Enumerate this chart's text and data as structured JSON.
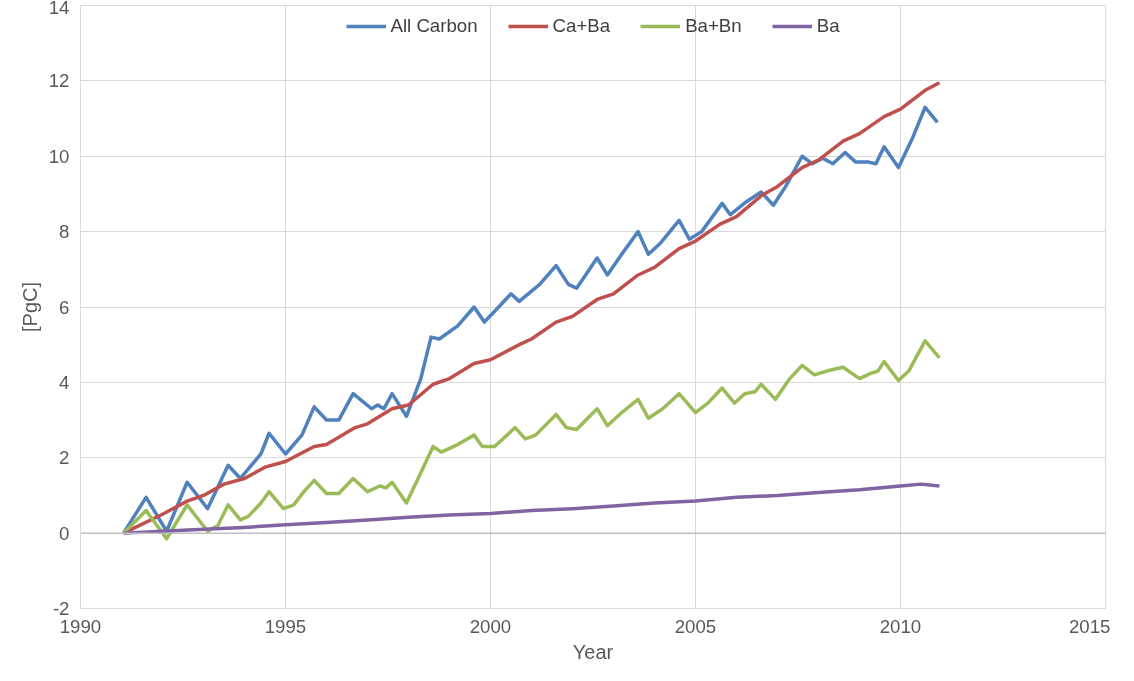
{
  "chart_data": {
    "type": "line",
    "xlabel": "Year",
    "ylabel": "[PgC]",
    "xlim": [
      1990,
      2015
    ],
    "xticks": [
      1990,
      1995,
      2000,
      2005,
      2010,
      2015
    ],
    "ylim": [
      -2,
      14
    ],
    "yticks": [
      -2,
      0,
      2,
      4,
      6,
      8,
      10,
      12,
      14
    ],
    "grid": true,
    "legend": "top",
    "marker": "none",
    "line_style": "solid",
    "series": [
      {
        "name": "All Carbon",
        "color": "#4f81bd",
        "x": [
          1991.05,
          1991.6,
          1992.1,
          1992.6,
          1993.1,
          1993.6,
          1993.9,
          1994.4,
          1994.6,
          1995.0,
          1995.4,
          1995.7,
          1996.0,
          1996.3,
          1996.65,
          1997.1,
          1997.25,
          1997.4,
          1997.6,
          1997.95,
          1998.3,
          1998.55,
          1998.75,
          1999.2,
          1999.6,
          1999.85,
          2000.2,
          2000.5,
          2000.7,
          2001.2,
          2001.6,
          2001.9,
          2002.1,
          2002.6,
          2002.85,
          2003.2,
          2003.6,
          2003.85,
          2004.15,
          2004.6,
          2004.85,
          2005.15,
          2005.65,
          2005.85,
          2006.25,
          2006.6,
          2006.9,
          2007.2,
          2007.6,
          2007.85,
          2008.1,
          2008.35,
          2008.65,
          2008.9,
          2009.2,
          2009.4,
          2009.6,
          2009.95,
          2010.3,
          2010.6,
          2010.9
        ],
        "values": [
          0,
          0.95,
          0.05,
          1.35,
          0.65,
          1.8,
          1.45,
          2.1,
          2.65,
          2.1,
          2.6,
          3.35,
          3.0,
          3.0,
          3.7,
          3.3,
          3.4,
          3.3,
          3.7,
          3.1,
          4.1,
          5.2,
          5.15,
          5.5,
          6.0,
          5.6,
          6.0,
          6.35,
          6.15,
          6.6,
          7.1,
          6.6,
          6.5,
          7.3,
          6.85,
          7.4,
          8.0,
          7.4,
          7.7,
          8.3,
          7.8,
          8.0,
          8.75,
          8.45,
          8.8,
          9.05,
          8.7,
          9.2,
          10.0,
          9.8,
          9.95,
          9.8,
          10.1,
          9.85,
          9.85,
          9.8,
          10.25,
          9.7,
          10.5,
          11.3,
          10.9
        ]
      },
      {
        "name": "Ca+Ba",
        "color": "#c0504d",
        "x": [
          1991.05,
          1992,
          1992.6,
          1993,
          1993.5,
          1994,
          1994.5,
          1995,
          1995.7,
          1996,
          1996.7,
          1997,
          1997.6,
          1998,
          1998.6,
          1999,
          1999.6,
          2000,
          2000.7,
          2001,
          2001.6,
          2002,
          2002.6,
          2003,
          2003.6,
          2004,
          2004.6,
          2005,
          2005.6,
          2006,
          2006.6,
          2007,
          2007.6,
          2008,
          2008.6,
          2009,
          2009.6,
          2010,
          2010.6,
          2010.95
        ],
        "values": [
          0,
          0.5,
          0.85,
          1.0,
          1.3,
          1.45,
          1.75,
          1.9,
          2.3,
          2.35,
          2.8,
          2.9,
          3.3,
          3.4,
          3.95,
          4.1,
          4.5,
          4.6,
          5.0,
          5.15,
          5.6,
          5.75,
          6.2,
          6.35,
          6.85,
          7.05,
          7.55,
          7.75,
          8.2,
          8.4,
          8.95,
          9.2,
          9.7,
          9.9,
          10.4,
          10.6,
          11.05,
          11.25,
          11.75,
          11.95
        ]
      },
      {
        "name": "Ba+Bn",
        "color": "#9bbb59",
        "x": [
          1991.05,
          1991.6,
          1992.1,
          1992.6,
          1993.1,
          1993.35,
          1993.6,
          1993.9,
          1994.1,
          1994.4,
          1994.6,
          1994.95,
          1995.2,
          1995.45,
          1995.7,
          1996.0,
          1996.3,
          1996.65,
          1997.0,
          1997.3,
          1997.45,
          1997.6,
          1997.95,
          1998.3,
          1998.6,
          1998.8,
          1999.2,
          1999.6,
          1999.8,
          2000.1,
          2000.6,
          2000.85,
          2001.1,
          2001.6,
          2001.85,
          2002.1,
          2002.6,
          2002.85,
          2003.2,
          2003.6,
          2003.85,
          2004.2,
          2004.6,
          2005.0,
          2005.3,
          2005.65,
          2005.95,
          2006.2,
          2006.45,
          2006.6,
          2006.95,
          2007.3,
          2007.6,
          2007.9,
          2008.2,
          2008.6,
          2009.0,
          2009.3,
          2009.45,
          2009.6,
          2009.95,
          2010.2,
          2010.6,
          2010.95
        ],
        "values": [
          0,
          0.6,
          -0.15,
          0.75,
          0.05,
          0.2,
          0.75,
          0.35,
          0.45,
          0.8,
          1.1,
          0.65,
          0.75,
          1.1,
          1.4,
          1.05,
          1.05,
          1.45,
          1.1,
          1.25,
          1.2,
          1.35,
          0.8,
          1.6,
          2.3,
          2.15,
          2.35,
          2.6,
          2.3,
          2.3,
          2.8,
          2.5,
          2.6,
          3.15,
          2.8,
          2.75,
          3.3,
          2.85,
          3.2,
          3.55,
          3.05,
          3.3,
          3.7,
          3.2,
          3.45,
          3.85,
          3.45,
          3.7,
          3.75,
          3.95,
          3.55,
          4.1,
          4.45,
          4.2,
          4.3,
          4.4,
          4.1,
          4.25,
          4.3,
          4.55,
          4.05,
          4.3,
          5.1,
          4.65
        ]
      },
      {
        "name": "Ba",
        "color": "#8064a2",
        "x": [
          1991.05,
          1992,
          1993,
          1994,
          1995,
          1996,
          1997,
          1998,
          1999,
          2000,
          2001,
          2002,
          2003,
          2004,
          2005,
          2006,
          2007,
          2008,
          2009,
          2010,
          2010.5,
          2010.95
        ],
        "values": [
          0,
          0.05,
          0.1,
          0.15,
          0.22,
          0.28,
          0.35,
          0.42,
          0.48,
          0.52,
          0.6,
          0.65,
          0.72,
          0.8,
          0.85,
          0.95,
          1.0,
          1.08,
          1.15,
          1.25,
          1.3,
          1.25
        ]
      }
    ]
  }
}
